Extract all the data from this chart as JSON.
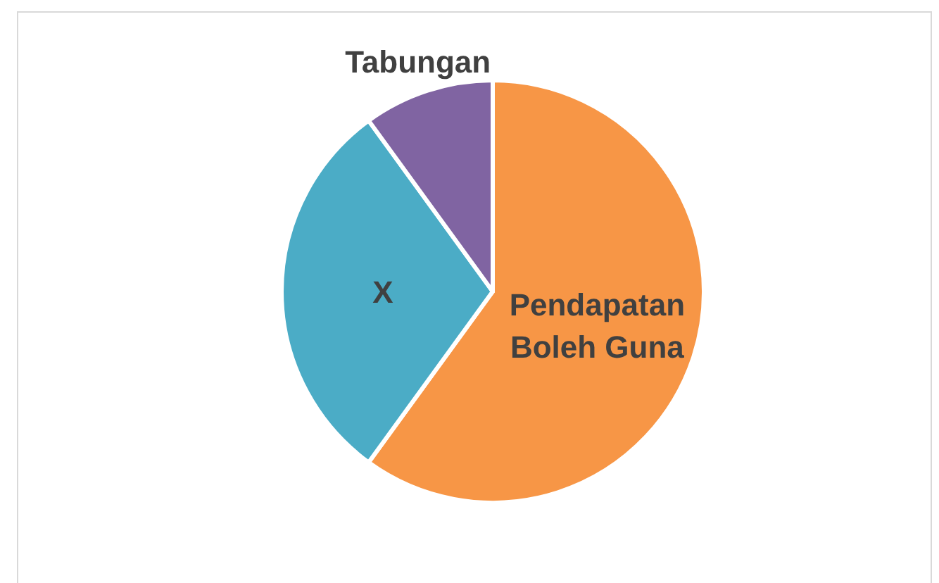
{
  "chart_data": {
    "type": "pie",
    "categories": [
      "Pendapatan Boleh Guna",
      "X",
      "Tabungan"
    ],
    "values": [
      60,
      30,
      10
    ],
    "colors": [
      "#f79646",
      "#4bacc6",
      "#8064a2"
    ]
  }
}
